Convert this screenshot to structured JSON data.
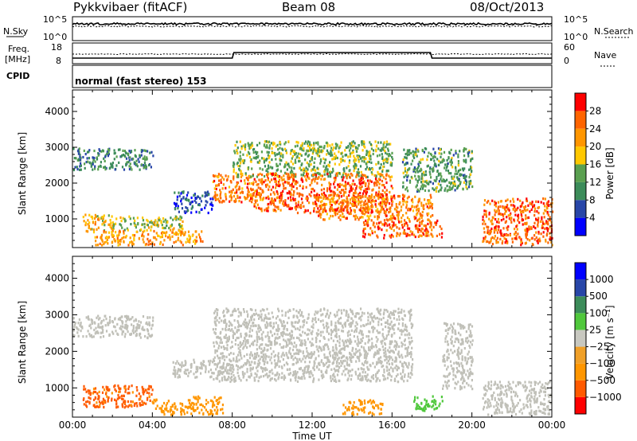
{
  "header": {
    "station": "Pykkvibaer (fitACF)",
    "beam": "Beam 08",
    "date": "08/Oct/2013"
  },
  "strip_panels": {
    "nsky_label": "N.Sky",
    "nsky_ticks": [
      "10^5",
      "10^0"
    ],
    "nsearch_label": "N.Search",
    "nsearch_ticks": [
      "10^5",
      "10^0"
    ],
    "freq_label_line1": "Freq.",
    "freq_label_line2": "[MHz]",
    "freq_ticks": [
      "18",
      "8"
    ],
    "nave_label": "Nave",
    "nave_ticks": [
      "60",
      "0"
    ],
    "cpid_label": "CPID",
    "cpid_value": "normal (fast stereo) 153"
  },
  "colors": {
    "power_scale": [
      "#0000ff",
      "#2846a8",
      "#3c8c5a",
      "#5aa050",
      "#ffc800",
      "#ff9600",
      "#ff6400",
      "#ff0000"
    ],
    "velocity_scale": [
      "#ff0000",
      "#ff5a00",
      "#ff9600",
      "#f0a028",
      "#c8c8c0",
      "#50c83c",
      "#3c8c5a",
      "#2846a8",
      "#0000ff"
    ],
    "ground_scatter": "#c0c0b8"
  },
  "chart_data": [
    {
      "type": "heatmap",
      "parameter": "Power",
      "xlabel": "",
      "ylabel": "Slant Range [km]",
      "x_range_hours": [
        0,
        24
      ],
      "ylim": [
        200,
        4600
      ],
      "y_ticks": [
        "4000",
        "3000",
        "2000",
        "1000"
      ],
      "colorbar_label": "Power [dB]",
      "colorbar_ticks": [
        "28",
        "24",
        "20",
        "16",
        "12",
        "8",
        "4"
      ],
      "colorbar_range": [
        0,
        32
      ],
      "regions": [
        {
          "t0": 0.0,
          "t1": 4.0,
          "r0": 2400,
          "r1": 3000,
          "value": 10
        },
        {
          "t0": 0.5,
          "t1": 2.0,
          "r0": 650,
          "r1": 1150,
          "value": 20
        },
        {
          "t0": 2.0,
          "t1": 5.5,
          "r0": 700,
          "r1": 1100,
          "value": 16
        },
        {
          "t0": 1.0,
          "t1": 6.5,
          "r0": 300,
          "r1": 700,
          "value": 22
        },
        {
          "t0": 5.0,
          "t1": 7.0,
          "r0": 1200,
          "r1": 1800,
          "value": 6
        },
        {
          "t0": 7.0,
          "t1": 9.5,
          "r0": 1500,
          "r1": 2300,
          "value": 24
        },
        {
          "t0": 8.0,
          "t1": 16.0,
          "r0": 2200,
          "r1": 3200,
          "value": 14
        },
        {
          "t0": 9.0,
          "t1": 16.0,
          "r0": 1200,
          "r1": 2300,
          "value": 26
        },
        {
          "t0": 12.0,
          "t1": 18.0,
          "r0": 1000,
          "r1": 1700,
          "value": 24
        },
        {
          "t0": 14.5,
          "t1": 18.5,
          "r0": 500,
          "r1": 1000,
          "value": 26
        },
        {
          "t0": 16.5,
          "t1": 20.0,
          "r0": 1800,
          "r1": 3000,
          "value": 12
        },
        {
          "t0": 20.5,
          "t1": 24.0,
          "r0": 300,
          "r1": 1600,
          "value": 26
        }
      ]
    },
    {
      "type": "heatmap",
      "parameter": "Velocity",
      "xlabel": "Time UT",
      "ylabel": "Slant Range [km]",
      "x_range_hours": [
        0,
        24
      ],
      "x_ticks": [
        "00:00",
        "04:00",
        "08:00",
        "12:00",
        "16:00",
        "20:00",
        "00:00"
      ],
      "ylim": [
        200,
        4600
      ],
      "y_ticks": [
        "4000",
        "3000",
        "2000",
        "1000"
      ],
      "colorbar_label": "Velocity [m s⁻¹]",
      "colorbar_ticks": [
        "1000",
        "500",
        "100",
        "25",
        "−25",
        "−100",
        "−500",
        "−1000"
      ],
      "regions": [
        {
          "t0": 0.0,
          "t1": 4.0,
          "r0": 2400,
          "r1": 3000,
          "value": 0
        },
        {
          "t0": 0.5,
          "t1": 4.0,
          "r0": 500,
          "r1": 1100,
          "value": -700
        },
        {
          "t0": 4.0,
          "t1": 7.5,
          "r0": 300,
          "r1": 800,
          "value": -300
        },
        {
          "t0": 5.0,
          "t1": 7.0,
          "r0": 1300,
          "r1": 1800,
          "value": 0
        },
        {
          "t0": 7.0,
          "t1": 17.0,
          "r0": 1200,
          "r1": 3200,
          "value": 0
        },
        {
          "t0": 13.5,
          "t1": 15.5,
          "r0": 300,
          "r1": 700,
          "value": -300
        },
        {
          "t0": 17.0,
          "t1": 18.5,
          "r0": 400,
          "r1": 800,
          "value": 60
        },
        {
          "t0": 18.5,
          "t1": 20.0,
          "r0": 1000,
          "r1": 2800,
          "value": 0
        },
        {
          "t0": 20.5,
          "t1": 24.0,
          "r0": 300,
          "r1": 1200,
          "value": 0
        }
      ]
    }
  ]
}
